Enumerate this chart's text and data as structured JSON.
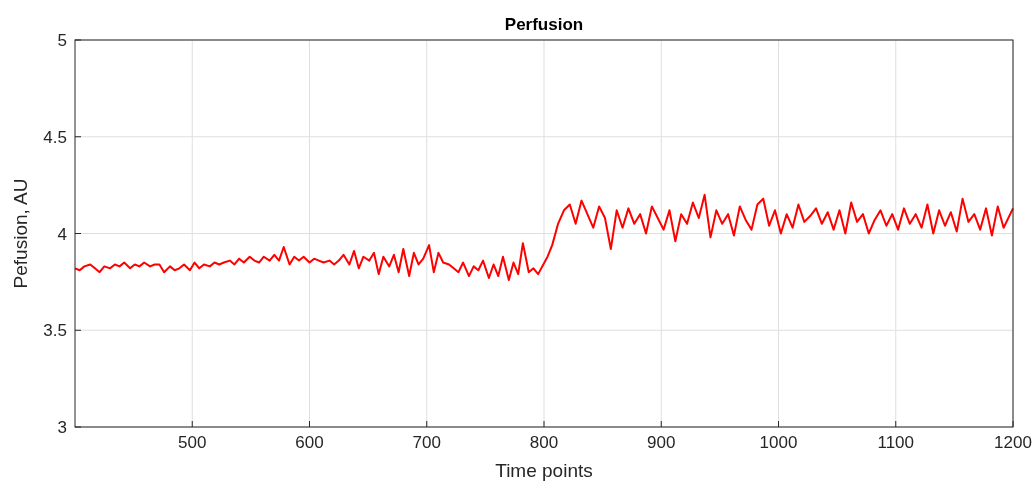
{
  "chart_data": {
    "type": "line",
    "title": "Perfusion",
    "xlabel": "Time points",
    "ylabel": "Pefusion, AU",
    "xlim": [
      400,
      1200
    ],
    "ylim": [
      3,
      5
    ],
    "xticks": [
      500,
      600,
      700,
      800,
      900,
      1000,
      1100,
      1200
    ],
    "yticks": [
      3,
      3.5,
      4,
      4.5,
      5
    ],
    "grid": true,
    "line_style": "solid",
    "marker": "none",
    "series": [
      {
        "color": "#ff0000",
        "x": [
          400,
          404,
          408,
          413,
          417,
          421,
          425,
          430,
          434,
          438,
          442,
          447,
          451,
          455,
          459,
          464,
          468,
          472,
          476,
          481,
          485,
          489,
          493,
          498,
          502,
          506,
          510,
          515,
          519,
          523,
          527,
          532,
          536,
          540,
          544,
          549,
          553,
          557,
          561,
          566,
          570,
          574,
          578,
          583,
          587,
          591,
          595,
          600,
          604,
          608,
          612,
          617,
          621,
          625,
          629,
          634,
          638,
          642,
          646,
          651,
          655,
          659,
          663,
          668,
          672,
          676,
          680,
          685,
          689,
          693,
          697,
          702,
          706,
          710,
          714,
          719,
          723,
          727,
          731,
          736,
          740,
          744,
          748,
          753,
          757,
          761,
          765,
          770,
          774,
          778,
          782,
          787,
          791,
          795,
          803,
          807,
          812,
          817,
          822,
          827,
          832,
          837,
          842,
          847,
          852,
          857,
          862,
          867,
          872,
          877,
          882,
          887,
          892,
          897,
          902,
          907,
          912,
          917,
          922,
          927,
          932,
          937,
          942,
          947,
          952,
          957,
          962,
          967,
          972,
          977,
          982,
          987,
          992,
          997,
          1002,
          1007,
          1012,
          1017,
          1022,
          1027,
          1032,
          1037,
          1042,
          1047,
          1052,
          1057,
          1062,
          1067,
          1072,
          1077,
          1082,
          1087,
          1092,
          1097,
          1102,
          1107,
          1112,
          1117,
          1122,
          1127,
          1132,
          1137,
          1142,
          1147,
          1152,
          1157,
          1162,
          1167,
          1172,
          1177,
          1182,
          1187,
          1192,
          1200
        ],
        "values": [
          3.82,
          3.81,
          3.83,
          3.84,
          3.82,
          3.8,
          3.83,
          3.82,
          3.84,
          3.83,
          3.85,
          3.82,
          3.84,
          3.83,
          3.85,
          3.83,
          3.84,
          3.84,
          3.8,
          3.83,
          3.81,
          3.82,
          3.84,
          3.81,
          3.85,
          3.82,
          3.84,
          3.83,
          3.85,
          3.84,
          3.85,
          3.86,
          3.84,
          3.87,
          3.85,
          3.88,
          3.86,
          3.85,
          3.88,
          3.86,
          3.89,
          3.86,
          3.93,
          3.84,
          3.88,
          3.86,
          3.88,
          3.85,
          3.87,
          3.86,
          3.85,
          3.86,
          3.84,
          3.86,
          3.89,
          3.84,
          3.91,
          3.82,
          3.88,
          3.86,
          3.9,
          3.79,
          3.88,
          3.83,
          3.89,
          3.8,
          3.92,
          3.78,
          3.9,
          3.84,
          3.87,
          3.94,
          3.8,
          3.9,
          3.85,
          3.84,
          3.82,
          3.8,
          3.85,
          3.78,
          3.83,
          3.81,
          3.86,
          3.77,
          3.84,
          3.78,
          3.88,
          3.76,
          3.85,
          3.79,
          3.95,
          3.8,
          3.82,
          3.79,
          3.88,
          3.94,
          4.05,
          4.12,
          4.15,
          4.05,
          4.17,
          4.1,
          4.03,
          4.14,
          4.08,
          3.92,
          4.12,
          4.03,
          4.13,
          4.05,
          4.1,
          4.0,
          4.14,
          4.08,
          4.02,
          4.12,
          3.96,
          4.1,
          4.05,
          4.16,
          4.08,
          4.2,
          3.98,
          4.12,
          4.05,
          4.1,
          3.99,
          4.14,
          4.07,
          4.02,
          4.15,
          4.18,
          4.04,
          4.12,
          4.0,
          4.1,
          4.03,
          4.15,
          4.06,
          4.09,
          4.13,
          4.05,
          4.11,
          4.02,
          4.12,
          4.0,
          4.16,
          4.06,
          4.1,
          4.0,
          4.07,
          4.12,
          4.04,
          4.1,
          4.02,
          4.13,
          4.05,
          4.1,
          4.03,
          4.15,
          4.0,
          4.12,
          4.04,
          4.11,
          4.01,
          4.18,
          4.06,
          4.1,
          4.02,
          4.13,
          3.99,
          4.14,
          4.03,
          4.13
        ]
      }
    ]
  }
}
